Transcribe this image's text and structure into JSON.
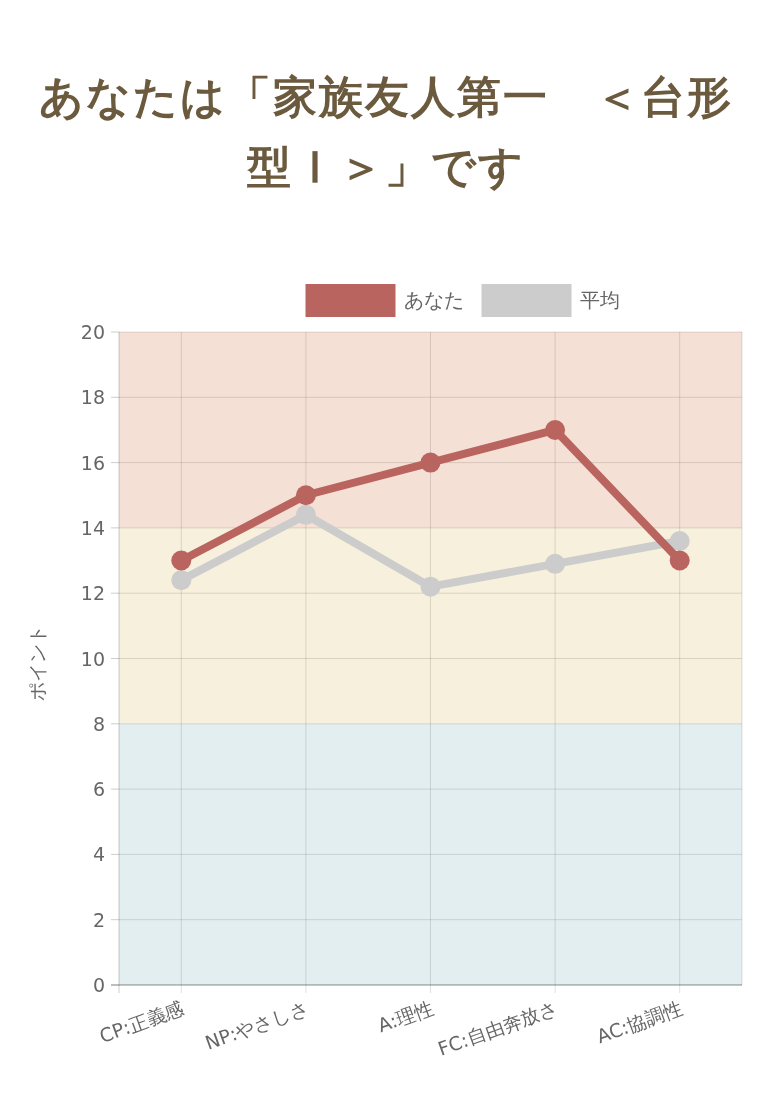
{
  "chart_data": {
    "type": "line",
    "title": "あなたは「家族友人第一　＜台形型Ｉ＞」です",
    "ylabel": "ポイント",
    "categories": [
      "CP:正義感",
      "NP:やさしさ",
      "A:理性",
      "FC:自由奔放さ",
      "AC:協調性"
    ],
    "series": [
      {
        "name": "あなた",
        "color": "#b9645f",
        "values": [
          13,
          15,
          16,
          17,
          13
        ]
      },
      {
        "name": "平均",
        "color": "#cccccc",
        "values": [
          12.4,
          14.4,
          12.2,
          12.9,
          13.6
        ]
      }
    ],
    "ylim": [
      0,
      20
    ],
    "yticks": [
      0,
      2,
      4,
      6,
      8,
      10,
      12,
      14,
      16,
      18,
      20
    ],
    "bands": [
      {
        "axis": "y",
        "from": 0,
        "to": 8,
        "color": "#e3eef0"
      },
      {
        "axis": "y",
        "from": 8,
        "to": 14,
        "color": "#f7f0dc"
      },
      {
        "axis": "y",
        "from": 14,
        "to": 20,
        "color": "#f5e0d6"
      }
    ],
    "grid": true,
    "legend": "top",
    "marker": "circle",
    "line_style": "solid"
  }
}
